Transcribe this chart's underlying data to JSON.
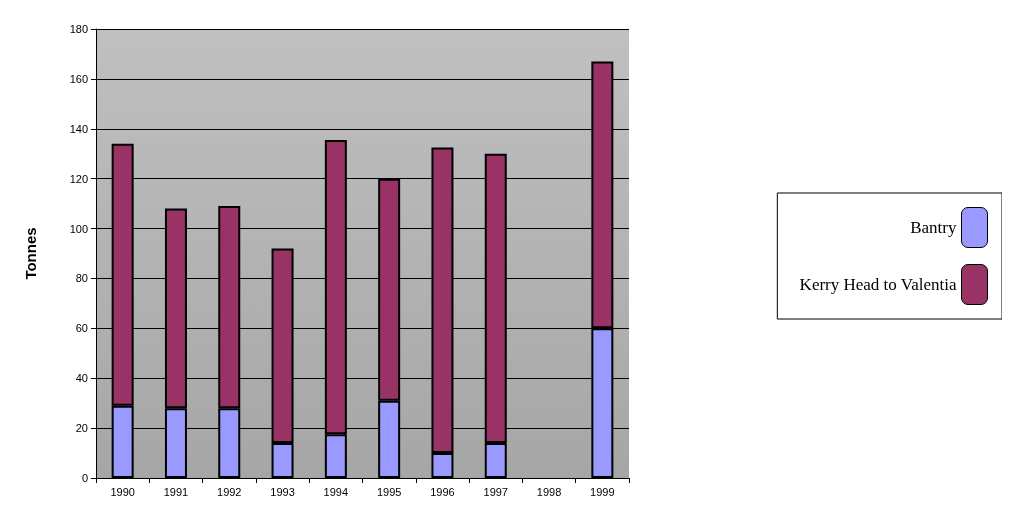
{
  "chart_data": {
    "type": "bar",
    "stacked": true,
    "ylabel": "Tonnes",
    "categories": [
      "1990",
      "1991",
      "1992",
      "1993",
      "1994",
      "1995",
      "1996",
      "1997",
      "1998",
      "1999"
    ],
    "series": [
      {
        "name": "Bantry",
        "color": "#9999ff",
        "values": [
          29,
          28,
          28,
          14,
          17.5,
          31,
          10,
          14,
          null,
          60
        ]
      },
      {
        "name": "Kerry Head to Valentia",
        "color": "#993366",
        "values": [
          105,
          80,
          81,
          78,
          118,
          89,
          122.5,
          116,
          null,
          107
        ]
      }
    ],
    "ylim": [
      0,
      180
    ],
    "yticks": [
      0,
      20,
      40,
      60,
      80,
      100,
      120,
      140,
      160,
      180
    ],
    "grid": "y",
    "legend": "right"
  }
}
